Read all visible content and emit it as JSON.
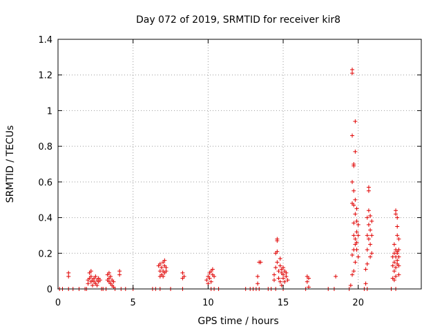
{
  "chart_data": {
    "type": "scatter",
    "title": "Day 072 of 2019, SRMTID for receiver kir8",
    "xlabel": "GPS time / hours",
    "ylabel": "SRMTID / TECUs",
    "xlim": [
      0,
      24.2
    ],
    "ylim": [
      0,
      1.4
    ],
    "xticks": [
      0,
      5,
      10,
      15,
      20
    ],
    "xtick_labels": [
      "0",
      "5",
      "10",
      "15",
      "20"
    ],
    "yticks": [
      0,
      0.2,
      0.4,
      0.6,
      0.8,
      1.0,
      1.2,
      1.4
    ],
    "ytick_labels": [
      "0",
      "0.2",
      "0.4",
      "0.6",
      "0.8",
      "1",
      "1.2",
      "1.4"
    ],
    "grid": true,
    "marker": "+",
    "series": [
      {
        "name": "SRMTID",
        "color": "#e00000",
        "points": [
          [
            0.1,
            0
          ],
          [
            0.3,
            0
          ],
          [
            0.7,
            0
          ],
          [
            0.7,
            0.07
          ],
          [
            0.7,
            0.09
          ],
          [
            1.0,
            0
          ],
          [
            1.4,
            0
          ],
          [
            1.8,
            0
          ],
          [
            1.9,
            0
          ],
          [
            2.0,
            0.03
          ],
          [
            2.0,
            0.05
          ],
          [
            2.1,
            0.06
          ],
          [
            2.1,
            0.09
          ],
          [
            2.2,
            0.04
          ],
          [
            2.2,
            0.07
          ],
          [
            2.3,
            0.05
          ],
          [
            2.3,
            0.02
          ],
          [
            2.4,
            0.06
          ],
          [
            2.4,
            0.04
          ],
          [
            2.5,
            0.03
          ],
          [
            2.5,
            0.07
          ],
          [
            2.6,
            0.05
          ],
          [
            2.6,
            0.02
          ],
          [
            2.7,
            0.06
          ],
          [
            2.7,
            0.04
          ],
          [
            2.2,
            0.1
          ],
          [
            2.8,
            0.05
          ],
          [
            2.9,
            0
          ],
          [
            3.0,
            0
          ],
          [
            3.2,
            0
          ],
          [
            3.3,
            0.05
          ],
          [
            3.3,
            0.08
          ],
          [
            3.4,
            0.06
          ],
          [
            3.4,
            0.04
          ],
          [
            3.5,
            0.07
          ],
          [
            3.5,
            0.03
          ],
          [
            3.6,
            0.05
          ],
          [
            3.6,
            0.02
          ],
          [
            3.7,
            0.04
          ],
          [
            3.7,
            0.01
          ],
          [
            3.8,
            0
          ],
          [
            3.4,
            0.09
          ],
          [
            4.1,
            0.08
          ],
          [
            4.1,
            0.1
          ],
          [
            4.2,
            0
          ],
          [
            4.5,
            0
          ],
          [
            5.0,
            0
          ],
          [
            6.3,
            0
          ],
          [
            6.5,
            0
          ],
          [
            6.8,
            0
          ],
          [
            6.7,
            0.13
          ],
          [
            6.8,
            0.1
          ],
          [
            6.8,
            0.14
          ],
          [
            6.9,
            0.08
          ],
          [
            6.9,
            0.12
          ],
          [
            7.0,
            0.15
          ],
          [
            7.0,
            0.1
          ],
          [
            7.1,
            0.13
          ],
          [
            7.1,
            0.09
          ],
          [
            7.1,
            0.16
          ],
          [
            7.2,
            0.12
          ],
          [
            7.2,
            0.1
          ],
          [
            6.8,
            0.07
          ],
          [
            7.0,
            0.07
          ],
          [
            7.5,
            0
          ],
          [
            8.3,
            0
          ],
          [
            8.3,
            0.06
          ],
          [
            8.3,
            0.09
          ],
          [
            8.4,
            0.07
          ],
          [
            9.9,
            0.05
          ],
          [
            10.0,
            0.07
          ],
          [
            10.0,
            0.03
          ],
          [
            10.1,
            0.09
          ],
          [
            10.1,
            0.06
          ],
          [
            10.2,
            0.1
          ],
          [
            10.2,
            0.04
          ],
          [
            10.3,
            0.08
          ],
          [
            10.3,
            0.11
          ],
          [
            10.4,
            0.07
          ],
          [
            10.2,
            0
          ],
          [
            10.4,
            0
          ],
          [
            10.7,
            0
          ],
          [
            12.5,
            0
          ],
          [
            12.8,
            0
          ],
          [
            13.0,
            0
          ],
          [
            13.2,
            0
          ],
          [
            13.3,
            0.03
          ],
          [
            13.3,
            0.07
          ],
          [
            13.4,
            0.15
          ],
          [
            13.5,
            0.15
          ],
          [
            13.4,
            0
          ],
          [
            14.0,
            0
          ],
          [
            14.2,
            0
          ],
          [
            14.5,
            0
          ],
          [
            14.4,
            0.05
          ],
          [
            14.4,
            0.08
          ],
          [
            14.5,
            0.12
          ],
          [
            14.5,
            0.2
          ],
          [
            14.6,
            0.28
          ],
          [
            14.6,
            0.27
          ],
          [
            14.6,
            0.21
          ],
          [
            14.6,
            0.15
          ],
          [
            14.7,
            0.1
          ],
          [
            14.7,
            0.06
          ],
          [
            14.8,
            0.17
          ],
          [
            14.8,
            0.13
          ],
          [
            14.8,
            0.04
          ],
          [
            14.9,
            0.09
          ],
          [
            14.9,
            0.11
          ],
          [
            14.9,
            0.02
          ],
          [
            15.0,
            0.08
          ],
          [
            15.0,
            0.12
          ],
          [
            15.0,
            0.06
          ],
          [
            15.1,
            0.1
          ],
          [
            15.1,
            0.04
          ],
          [
            15.2,
            0.07
          ],
          [
            15.2,
            0.09
          ],
          [
            15.3,
            0.05
          ],
          [
            15.0,
            0
          ],
          [
            16.5,
            0
          ],
          [
            16.6,
            0.04
          ],
          [
            16.6,
            0.07
          ],
          [
            16.7,
            0.01
          ],
          [
            16.7,
            0.06
          ],
          [
            18.0,
            0
          ],
          [
            18.4,
            0
          ],
          [
            18.5,
            0.07
          ],
          [
            19.4,
            0
          ],
          [
            19.5,
            0.02
          ],
          [
            19.6,
            0.08
          ],
          [
            19.6,
            0.19
          ],
          [
            19.6,
            0.48
          ],
          [
            19.6,
            0.6
          ],
          [
            19.6,
            0.86
          ],
          [
            19.6,
            1.21
          ],
          [
            19.6,
            1.23
          ],
          [
            19.7,
            0.1
          ],
          [
            19.7,
            0.22
          ],
          [
            19.7,
            0.3
          ],
          [
            19.7,
            0.37
          ],
          [
            19.7,
            0.47
          ],
          [
            19.7,
            0.55
          ],
          [
            19.7,
            0.69
          ],
          [
            19.7,
            0.7
          ],
          [
            19.8,
            0.15
          ],
          [
            19.8,
            0.25
          ],
          [
            19.8,
            0.28
          ],
          [
            19.8,
            0.42
          ],
          [
            19.8,
            0.5
          ],
          [
            19.8,
            0.77
          ],
          [
            19.8,
            0.94
          ],
          [
            19.9,
            0.26
          ],
          [
            19.9,
            0.32
          ],
          [
            19.9,
            0.45
          ],
          [
            19.9,
            0.38
          ],
          [
            19.9,
            0.22
          ],
          [
            20.0,
            0.18
          ],
          [
            20.0,
            0.3
          ],
          [
            20.0,
            0.36
          ],
          [
            20.4,
            0
          ],
          [
            20.5,
            0.03
          ],
          [
            20.5,
            0.11
          ],
          [
            20.6,
            0.14
          ],
          [
            20.6,
            0.22
          ],
          [
            20.6,
            0.3
          ],
          [
            20.6,
            0.4
          ],
          [
            20.7,
            0.28
          ],
          [
            20.7,
            0.36
          ],
          [
            20.7,
            0.44
          ],
          [
            20.7,
            0.55
          ],
          [
            20.7,
            0.57
          ],
          [
            20.8,
            0.18
          ],
          [
            20.8,
            0.25
          ],
          [
            20.8,
            0.33
          ],
          [
            20.8,
            0.41
          ],
          [
            20.9,
            0.3
          ],
          [
            20.9,
            0.2
          ],
          [
            20.9,
            0.38
          ],
          [
            20.6,
            0
          ],
          [
            22.2,
            0
          ],
          [
            22.3,
            0.06
          ],
          [
            22.3,
            0.13
          ],
          [
            22.3,
            0.18
          ],
          [
            22.4,
            0.1
          ],
          [
            22.4,
            0.15
          ],
          [
            22.4,
            0.2
          ],
          [
            22.4,
            0.25
          ],
          [
            22.5,
            0.12
          ],
          [
            22.5,
            0.18
          ],
          [
            22.5,
            0.22
          ],
          [
            22.5,
            0.44
          ],
          [
            22.5,
            0.42
          ],
          [
            22.6,
            0.14
          ],
          [
            22.6,
            0.16
          ],
          [
            22.6,
            0.2
          ],
          [
            22.6,
            0.3
          ],
          [
            22.6,
            0.35
          ],
          [
            22.6,
            0.4
          ],
          [
            22.7,
            0.22
          ],
          [
            22.7,
            0.28
          ],
          [
            22.7,
            0.18
          ],
          [
            22.7,
            0.08
          ],
          [
            22.4,
            0.05
          ],
          [
            22.5,
            0.07
          ],
          [
            22.5,
            0
          ],
          [
            22.6,
            0.21
          ],
          [
            22.7,
            0.13
          ]
        ]
      }
    ]
  }
}
